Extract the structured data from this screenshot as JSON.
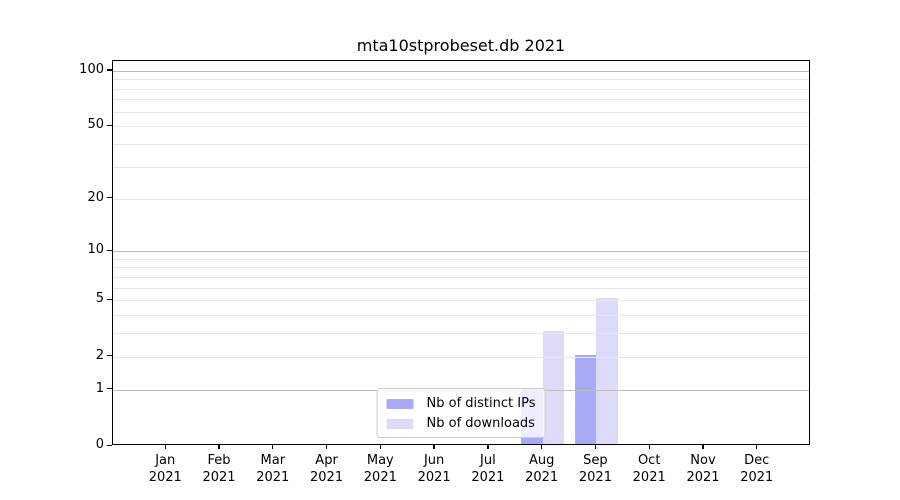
{
  "chart_data": {
    "type": "bar",
    "title": "mta10stprobeset.db 2021",
    "categories": [
      "Jan 2021",
      "Feb 2021",
      "Mar 2021",
      "Apr 2021",
      "May 2021",
      "Jun 2021",
      "Jul 2021",
      "Aug 2021",
      "Sep 2021",
      "Oct 2021",
      "Nov 2021",
      "Dec 2021"
    ],
    "series": [
      {
        "name": "Nb of distinct IPs",
        "color": "#a9a9f7",
        "values": [
          0,
          0,
          0,
          0,
          0,
          0,
          0,
          1,
          2,
          0,
          0,
          0
        ]
      },
      {
        "name": "Nb of downloads",
        "color": "#dcdcf9",
        "values": [
          0,
          0,
          0,
          0,
          0,
          0,
          0,
          3,
          5,
          0,
          0,
          0
        ]
      }
    ],
    "xlabel": "",
    "ylabel": "",
    "yscale": "log1p",
    "ylim": [
      0,
      113
    ],
    "yticks": [
      0,
      1,
      2,
      5,
      10,
      20,
      50,
      100
    ],
    "ygrid_major": [
      1,
      10,
      100
    ],
    "ygrid_minor": [
      2,
      3,
      4,
      5,
      6,
      7,
      8,
      9,
      20,
      30,
      40,
      50,
      60,
      70,
      80,
      90
    ],
    "grid": true,
    "legend_position": "lower center"
  },
  "colors": {
    "background": "#ffffff",
    "spine": "#000000",
    "grid_major": "#bdbdbd",
    "grid_minor": "#e9e9e9",
    "text": "#000000",
    "legend_border": "#cccccc",
    "legend_background": "rgba(255,255,255,0.8)"
  }
}
